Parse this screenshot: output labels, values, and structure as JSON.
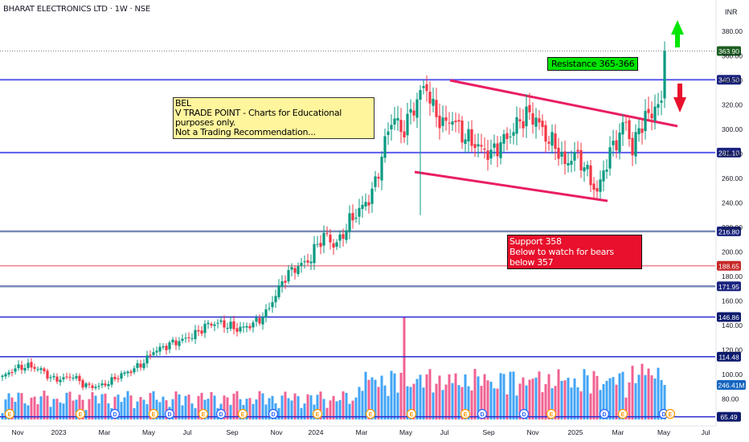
{
  "header": {
    "title": "BHARAT ELECTRONICS LTD · 1W · NSE",
    "currency": "INR"
  },
  "annotations": {
    "note_lines": [
      "BEL",
      "V TRADE POINT - Charts for Educational purposes only.",
      "Not a Trading Recommendation..."
    ],
    "resistance_label": "Resistance  365-366",
    "support_lines": [
      "Support 358",
      "Below to watch for bears below 357"
    ]
  },
  "colors": {
    "up": "#089981",
    "down": "#f23645",
    "vol_up": "#42a5f5",
    "vol_down": "#f06292",
    "level_blue": "#5b5bf0",
    "level_slate": "#7a8ab8",
    "level_red": "#ef5d6a",
    "level_navy": "#2a2ad0",
    "channel": "#e91e63",
    "arrow_up": "#00e600",
    "arrow_down": "#e8102c"
  },
  "chart_data": {
    "type": "candlestick",
    "x_ticks": [
      "Nov",
      "2023",
      "Mar",
      "May",
      "Jul",
      "Sep",
      "Nov",
      "2024",
      "Mar",
      "May",
      "Jul",
      "Sep",
      "Nov",
      "2025",
      "Mar",
      "May",
      "Jul"
    ],
    "y_ticks": [
      "380.00",
      "360.00",
      "340.00",
      "320.00",
      "300.00",
      "280.00",
      "260.00",
      "240.00",
      "220.00",
      "200.00",
      "180.00",
      "160.00",
      "140.00",
      "120.00",
      "100.00",
      "80.00"
    ],
    "level_lines": [
      {
        "label": "363.90",
        "value": 363.9,
        "style": "dotted",
        "role": "last"
      },
      {
        "label": "340.50",
        "value": 340.5,
        "style": "solid",
        "role": "blue"
      },
      {
        "label": "281.10",
        "value": 281.1,
        "style": "solid",
        "role": "blue"
      },
      {
        "label": "216.80",
        "value": 216.8,
        "style": "solid",
        "role": "slate"
      },
      {
        "label": "188.65",
        "value": 188.65,
        "style": "solid",
        "role": "red"
      },
      {
        "label": "171.95",
        "value": 171.95,
        "style": "solid",
        "role": "slate"
      },
      {
        "label": "146.86",
        "value": 146.86,
        "style": "solid",
        "role": "navy"
      },
      {
        "label": "114.48",
        "value": 114.48,
        "style": "solid",
        "role": "navy"
      },
      {
        "label": "65.49",
        "value": 65.49,
        "style": "solid",
        "role": "navy"
      }
    ],
    "volume_label": "246.41M",
    "close_keypoints": [
      [
        0,
        98
      ],
      [
        4,
        105
      ],
      [
        8,
        107
      ],
      [
        12,
        104
      ],
      [
        15,
        97
      ],
      [
        18,
        96
      ],
      [
        22,
        99
      ],
      [
        25,
        92
      ],
      [
        28,
        90
      ],
      [
        31,
        91
      ],
      [
        34,
        95
      ],
      [
        37,
        100
      ],
      [
        40,
        103
      ],
      [
        44,
        110
      ],
      [
        47,
        119
      ],
      [
        50,
        122
      ],
      [
        53,
        126
      ],
      [
        56,
        128
      ],
      [
        60,
        133
      ],
      [
        64,
        141
      ],
      [
        67,
        142
      ],
      [
        70,
        140
      ],
      [
        73,
        137
      ],
      [
        76,
        139
      ],
      [
        79,
        143
      ],
      [
        82,
        150
      ],
      [
        85,
        165
      ],
      [
        88,
        180
      ],
      [
        91,
        187
      ],
      [
        94,
        191
      ],
      [
        96,
        195
      ],
      [
        98,
        207
      ],
      [
        101,
        214
      ],
      [
        103,
        205
      ],
      [
        105,
        210
      ],
      [
        108,
        225
      ],
      [
        111,
        234
      ],
      [
        114,
        243
      ],
      [
        116,
        256
      ],
      [
        118,
        278
      ],
      [
        120,
        300
      ],
      [
        122,
        311
      ],
      [
        124,
        297
      ],
      [
        126,
        307
      ],
      [
        128,
        318
      ],
      [
        130,
        330
      ],
      [
        132,
        335
      ],
      [
        134,
        316
      ],
      [
        137,
        304
      ],
      [
        140,
        309
      ],
      [
        143,
        296
      ],
      [
        146,
        290
      ],
      [
        149,
        284
      ],
      [
        152,
        280
      ],
      [
        155,
        289
      ],
      [
        158,
        296
      ],
      [
        160,
        304
      ],
      [
        163,
        312
      ],
      [
        166,
        309
      ],
      [
        169,
        294
      ],
      [
        172,
        287
      ],
      [
        175,
        271
      ],
      [
        178,
        280
      ],
      [
        181,
        270
      ],
      [
        183,
        258
      ],
      [
        185,
        248
      ],
      [
        187,
        266
      ],
      [
        189,
        281
      ],
      [
        192,
        296
      ],
      [
        194,
        307
      ],
      [
        196,
        281
      ],
      [
        198,
        302
      ],
      [
        200,
        308
      ],
      [
        203,
        318
      ],
      [
        205,
        320
      ],
      [
        206,
        364
      ]
    ],
    "volume_tall_bar": {
      "week": 125,
      "height_value": 170
    }
  }
}
